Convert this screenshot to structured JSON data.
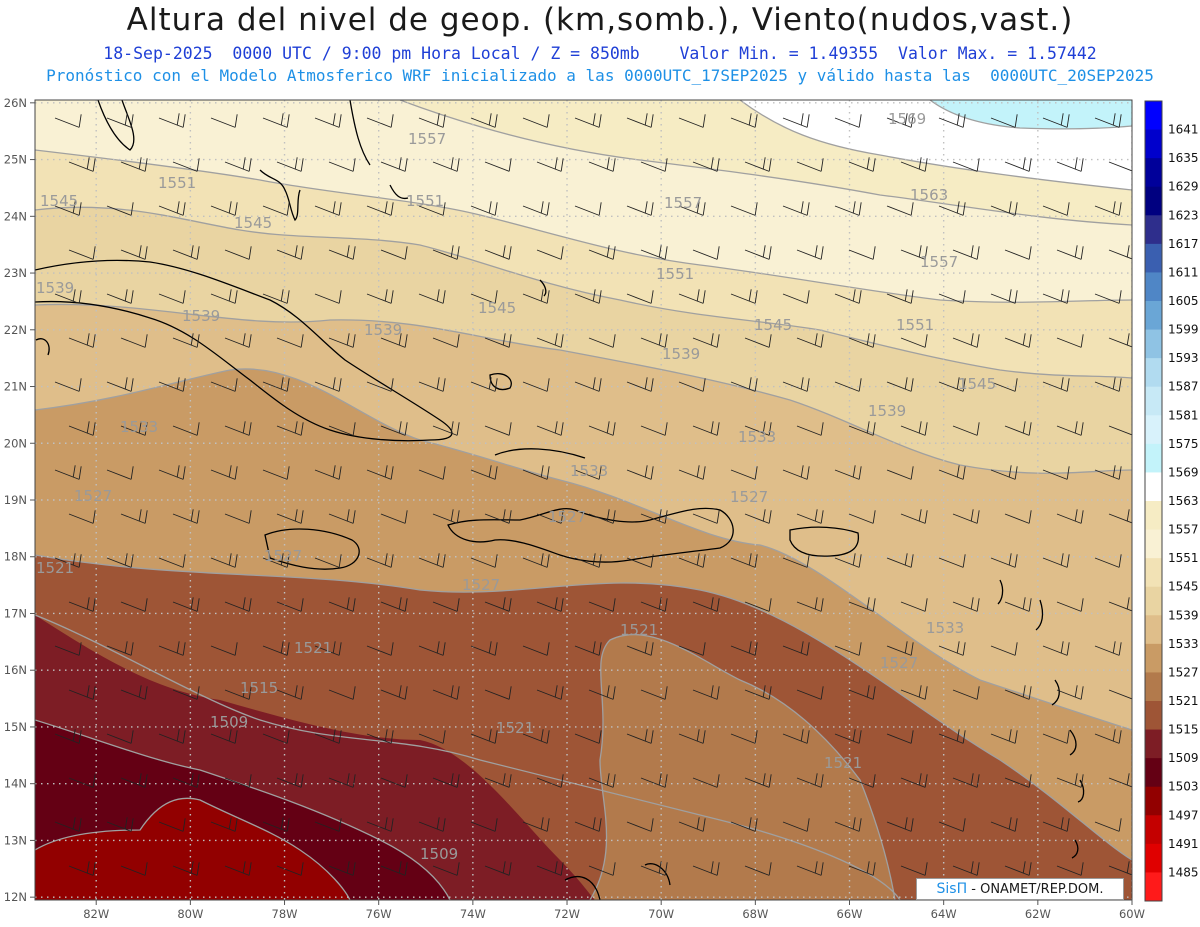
{
  "header": {
    "title": "Altura del nivel de geop. (km,somb.), Viento(nudos,vast.)",
    "line1": "18-Sep-2025  0000 UTC / 9:00 pm Hora Local / Z = 850mb    Valor Min. = 1.49355  Valor Max. = 1.57442",
    "line2": "Pronóstico con el Modelo Atmosferico WRF inicializado a las 0000UTC_17SEP2025 y válido hasta las  0000UTC_20SEP2025"
  },
  "map": {
    "lat_labels": [
      "26N",
      "25N",
      "24N",
      "23N",
      "22N",
      "21N",
      "20N",
      "19N",
      "18N",
      "17N",
      "16N",
      "15N",
      "14N",
      "13N",
      "12N"
    ],
    "lon_labels": [
      "82W",
      "80W",
      "78W",
      "76W",
      "74W",
      "72W",
      "70W",
      "68W",
      "66W",
      "64W",
      "62W",
      "60W"
    ],
    "contour_labels": [
      {
        "text": "1569",
        "id": "c1569a"
      },
      {
        "text": "1557",
        "id": "c1557a"
      },
      {
        "text": "1551",
        "id": "c1551a"
      },
      {
        "text": "1545",
        "id": "c1545a"
      },
      {
        "text": "1551",
        "id": "c1551b"
      },
      {
        "text": "1545",
        "id": "c1545b"
      },
      {
        "text": "1557",
        "id": "c1557b"
      },
      {
        "text": "1563",
        "id": "c1563a"
      },
      {
        "text": "1539",
        "id": "c1539a"
      },
      {
        "text": "1539",
        "id": "c1539b"
      },
      {
        "text": "1539",
        "id": "c1539c"
      },
      {
        "text": "1545",
        "id": "c1545c"
      },
      {
        "text": "1551",
        "id": "c1551c"
      },
      {
        "text": "1557",
        "id": "c1557c"
      },
      {
        "text": "1545",
        "id": "c1545d"
      },
      {
        "text": "1551",
        "id": "c1551d"
      },
      {
        "text": "1539",
        "id": "c1539d"
      },
      {
        "text": "1545",
        "id": "c1545e"
      },
      {
        "text": "1539",
        "id": "c1539e"
      },
      {
        "text": "1533",
        "id": "c1533a"
      },
      {
        "text": "1533",
        "id": "c1533b"
      },
      {
        "text": "1533",
        "id": "c1533c"
      },
      {
        "text": "1527",
        "id": "c1527a"
      },
      {
        "text": "1527",
        "id": "c1527b"
      },
      {
        "text": "1527",
        "id": "c1527c"
      },
      {
        "text": "1527",
        "id": "c1527d"
      },
      {
        "text": "1521",
        "id": "c1521a"
      },
      {
        "text": "1527",
        "id": "c1527e"
      },
      {
        "text": "1533",
        "id": "c1533d"
      },
      {
        "text": "1527",
        "id": "c1527f"
      },
      {
        "text": "1521",
        "id": "c1521b"
      },
      {
        "text": "1521",
        "id": "c1521c"
      },
      {
        "text": "1515",
        "id": "c1515a"
      },
      {
        "text": "1521",
        "id": "c1521d"
      },
      {
        "text": "1509",
        "id": "c1509a"
      },
      {
        "text": "1521",
        "id": "c1521e"
      },
      {
        "text": "1509",
        "id": "c1509b"
      }
    ],
    "colorbar": [
      {
        "label": "1641",
        "color": "#0000ff"
      },
      {
        "label": "1635",
        "color": "#0000cc"
      },
      {
        "label": "1629",
        "color": "#00009a"
      },
      {
        "label": "1623",
        "color": "#000080"
      },
      {
        "label": "1617",
        "color": "#2e2e8c"
      },
      {
        "label": "1611",
        "color": "#3a5fb0"
      },
      {
        "label": "1605",
        "color": "#4f86c6"
      },
      {
        "label": "1599",
        "color": "#6aa6d6"
      },
      {
        "label": "1593",
        "color": "#8fc3e4"
      },
      {
        "label": "1587",
        "color": "#b1dbf0"
      },
      {
        "label": "1581",
        "color": "#c7e9f6"
      },
      {
        "label": "1575",
        "color": "#d8f2fb"
      },
      {
        "label": "1569",
        "color": "#c3f3fa"
      },
      {
        "label": "1563",
        "color": "#ffffff"
      },
      {
        "label": "1557",
        "color": "#f6ecc4"
      },
      {
        "label": "1551",
        "color": "#f9f1d4"
      },
      {
        "label": "1545",
        "color": "#f2e2b5"
      },
      {
        "label": "1539",
        "color": "#e9d4a2"
      },
      {
        "label": "1533",
        "color": "#dfbe8a"
      },
      {
        "label": "1527",
        "color": "#c99b65"
      },
      {
        "label": "1521",
        "color": "#b27a4c"
      },
      {
        "label": "1515",
        "color": "#9e5536"
      },
      {
        "label": "1509",
        "color": "#7d1d25"
      },
      {
        "label": "1503",
        "color": "#640014"
      },
      {
        "label": "1497",
        "color": "#920000"
      },
      {
        "label": "1491",
        "color": "#c40000"
      },
      {
        "label": "1485",
        "color": "#e00000"
      },
      {
        "label": "",
        "color": "#ff1a1a"
      }
    ]
  },
  "credit": {
    "brand": "SisΠ",
    "text": " - ONAMET/REP.DOM."
  }
}
